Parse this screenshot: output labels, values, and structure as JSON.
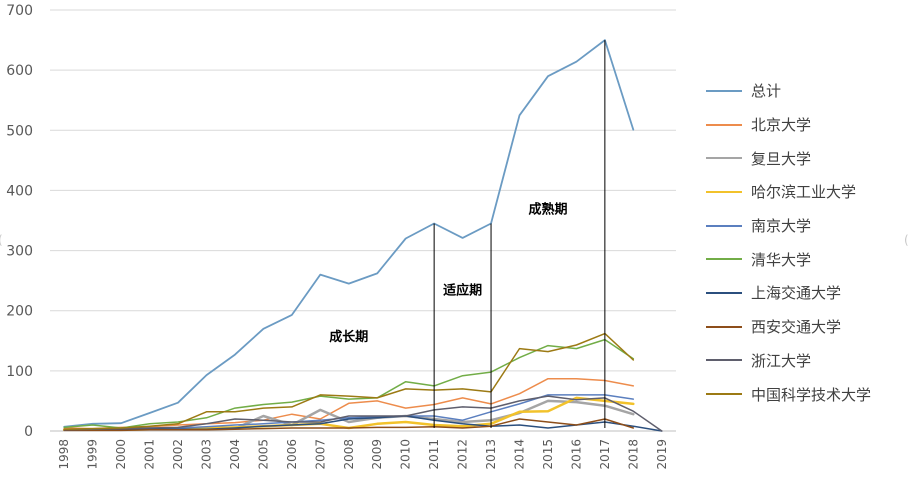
{
  "chart_data": {
    "type": "line",
    "title": "",
    "xlabel": "",
    "ylabel": "",
    "ylim": [
      0,
      700
    ],
    "yticks": [
      0,
      100,
      200,
      300,
      400,
      500,
      600,
      700
    ],
    "grid": true,
    "legend_position": "right",
    "categories": [
      "1998",
      "1999",
      "2000",
      "2001",
      "2002",
      "2003",
      "2004",
      "2005",
      "2006",
      "2007",
      "2008",
      "2009",
      "2010",
      "2011",
      "2012",
      "2013",
      "2014",
      "2015",
      "2016",
      "2017",
      "2018",
      "2019"
    ],
    "series": [
      {
        "name": "总计",
        "color": "#6b9bc3",
        "width": 1.8,
        "values": [
          7,
          12,
          13,
          30,
          47,
          93,
          127,
          170,
          193,
          260,
          245,
          262,
          320,
          345,
          321,
          345,
          525,
          590,
          614,
          650,
          501,
          null
        ]
      },
      {
        "name": "北京大学",
        "color": "#ed8c4c",
        "width": 1.5,
        "values": [
          5,
          4,
          6,
          7,
          10,
          12,
          14,
          18,
          28,
          20,
          46,
          50,
          38,
          44,
          55,
          45,
          62,
          87,
          87,
          84,
          75,
          null
        ]
      },
      {
        "name": "复旦大学",
        "color": "#a5a5a5",
        "width": 2.5,
        "values": [
          2,
          2,
          3,
          4,
          4,
          3,
          4,
          25,
          10,
          35,
          15,
          22,
          25,
          20,
          15,
          18,
          30,
          50,
          48,
          42,
          28,
          null
        ]
      },
      {
        "name": "哈尔滨工业大学",
        "color": "#f2c22b",
        "width": 2.5,
        "values": [
          2,
          2,
          2,
          3,
          5,
          5,
          6,
          8,
          10,
          12,
          5,
          12,
          15,
          10,
          8,
          12,
          32,
          33,
          55,
          50,
          45,
          null
        ]
      },
      {
        "name": "南京大学",
        "color": "#5b7fbf",
        "width": 1.5,
        "values": [
          3,
          3,
          3,
          4,
          5,
          7,
          10,
          12,
          15,
          18,
          22,
          24,
          25,
          25,
          18,
          32,
          45,
          60,
          60,
          60,
          53,
          null
        ]
      },
      {
        "name": "清华大学",
        "color": "#72ad47",
        "width": 1.5,
        "values": [
          6,
          10,
          5,
          12,
          15,
          22,
          38,
          44,
          48,
          58,
          53,
          55,
          82,
          75,
          92,
          98,
          122,
          142,
          137,
          152,
          120,
          null
        ]
      },
      {
        "name": "上海交通大学",
        "color": "#2b4f7e",
        "width": 1.5,
        "values": [
          2,
          2,
          2,
          3,
          3,
          3,
          5,
          8,
          10,
          12,
          20,
          22,
          25,
          18,
          12,
          8,
          10,
          5,
          10,
          15,
          8,
          0
        ]
      },
      {
        "name": "西安交通大学",
        "color": "#8d4e1a",
        "width": 1.5,
        "values": [
          1,
          1,
          1,
          2,
          2,
          2,
          3,
          4,
          5,
          5,
          5,
          6,
          6,
          7,
          5,
          8,
          20,
          15,
          10,
          20,
          5,
          null
        ]
      },
      {
        "name": "浙江大学",
        "color": "#5f5f6d",
        "width": 1.5,
        "values": [
          2,
          3,
          4,
          5,
          6,
          12,
          20,
          18,
          15,
          15,
          25,
          25,
          25,
          35,
          40,
          38,
          50,
          58,
          52,
          55,
          33,
          0
        ]
      },
      {
        "name": "中国科学技术大学",
        "color": "#9c7a14",
        "width": 1.5,
        "values": [
          3,
          4,
          5,
          8,
          12,
          32,
          32,
          38,
          40,
          60,
          58,
          55,
          70,
          68,
          70,
          65,
          137,
          132,
          143,
          162,
          118,
          null
        ]
      }
    ],
    "annotations": [
      {
        "text": "成长期",
        "x": "2008",
        "y": 150
      },
      {
        "text": "适应期",
        "x": "2012",
        "y": 227
      },
      {
        "text": "成熟期",
        "x": "2015",
        "y": 362
      }
    ],
    "phase_lines": [
      {
        "x": "2011",
        "y_top": 345
      },
      {
        "x": "2013",
        "y_top": 345
      },
      {
        "x": "2017",
        "y_top": 650
      }
    ]
  },
  "edge_marks": {
    "left": "(",
    "right": "("
  }
}
